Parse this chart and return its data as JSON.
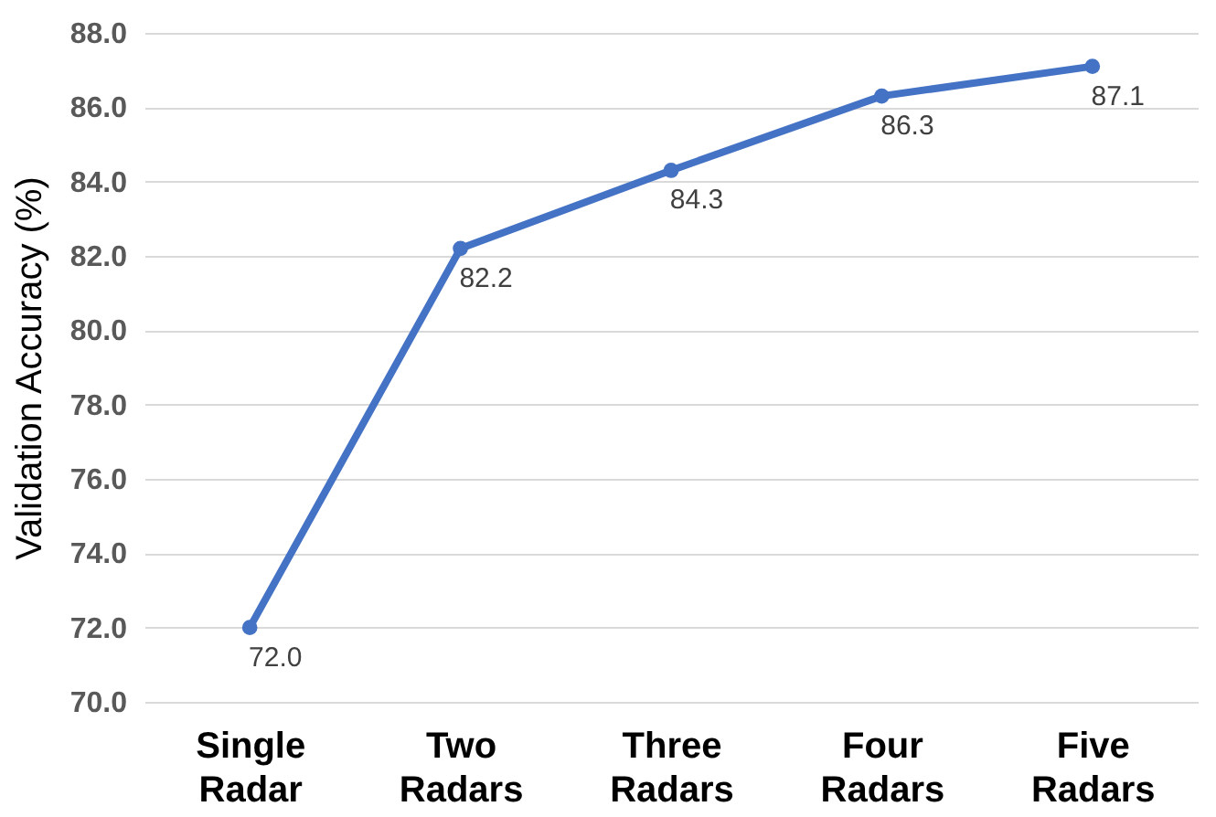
{
  "chart_data": {
    "type": "line",
    "ylabel": "Validation Accuracy (%)",
    "categories": [
      "Single Radar",
      "Two Radars",
      "Three Radars",
      "Four Radars",
      "Five Radars"
    ],
    "series": [
      {
        "color": "#4472c4",
        "values": [
          72.0,
          82.2,
          84.3,
          86.3,
          87.1
        ],
        "value_labels": [
          "72.0",
          "82.2",
          "84.3",
          "86.3",
          "87.1"
        ]
      }
    ],
    "ylim": [
      70,
      88
    ],
    "yticks": [
      {
        "value": 70,
        "label": "70.0"
      },
      {
        "value": 72,
        "label": "72.0"
      },
      {
        "value": 74,
        "label": "74.0"
      },
      {
        "value": 76,
        "label": "76.0"
      },
      {
        "value": 78,
        "label": "78.0"
      },
      {
        "value": 80,
        "label": "80.0"
      },
      {
        "value": 82,
        "label": "82.0"
      },
      {
        "value": 84,
        "label": "84.0"
      },
      {
        "value": 86,
        "label": "86.0"
      },
      {
        "value": 88,
        "label": "88.0"
      }
    ],
    "grid": "y",
    "marker": "circle",
    "line_style": "solid"
  }
}
